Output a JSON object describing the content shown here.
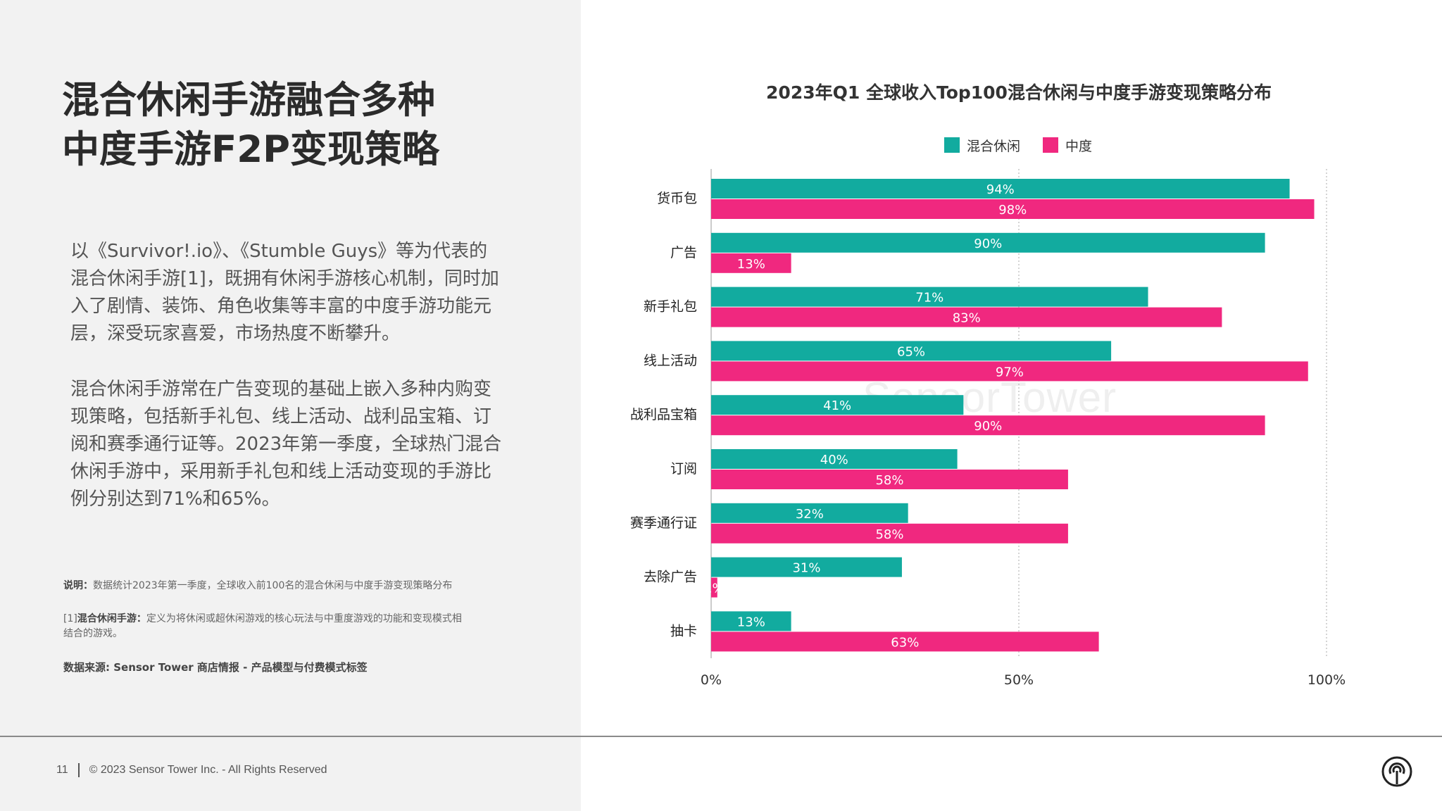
{
  "headline": [
    "混合休闲手游融合多种",
    "中度手游F2P变现策略"
  ],
  "paragraphs": [
    [
      "以《Survivor!.io》、《Stumble Guys》等为代表的",
      "混合休闲手游[1]，既拥有休闲手游核心机制，同时加",
      "入了剧情、装饰、角色收集等丰富的中度手游功能元",
      "层，深受玩家喜爱，市场热度不断攀升。"
    ],
    [
      "混合休闲手游常在广告变现的基础上嵌入多种内购变",
      "现策略，包括新手礼包、线上活动、战利品宝箱、订",
      "阅和赛季通行证等。2023年第一季度，全球热门混合",
      "休闲手游中，采用新手礼包和线上活动变现的手游比",
      "例分别达到71%和65%。"
    ]
  ],
  "notes": {
    "note1_label": "说明：",
    "note1_text": "数据统计2023年第一季度，全球收入前100名的混合休闲与中度手游变现策略分布",
    "note2_prefix": "[1]",
    "note2_label": "混合休闲手游：",
    "note2_text_line1": "定义为将休闲或超休闲游戏的核心玩法与中重度游戏的功能和变现模式相",
    "note2_text_line2": "结合的游戏。",
    "source": "数据来源: Sensor Tower 商店情报 - 产品模型与付费模式标签"
  },
  "footer": {
    "page": "11",
    "copyright": "© 2023 Sensor Tower Inc. - All Rights Reserved"
  },
  "watermark": "SensorTower",
  "colors": {
    "teal": "#12ab9f",
    "pink": "#f0287f",
    "panel": "#f2f2f2"
  },
  "chart_data": {
    "type": "bar",
    "orientation": "horizontal",
    "title": "2023年Q1 全球收入Top100混合休闲与中度手游变现策略分布",
    "categories": [
      "货币包",
      "广告",
      "新手礼包",
      "线上活动",
      "战利品宝箱",
      "订阅",
      "赛季通行证",
      "去除广告",
      "抽卡"
    ],
    "series": [
      {
        "name": "混合休闲",
        "color": "#12ab9f",
        "values": [
          94,
          90,
          71,
          65,
          41,
          40,
          32,
          31,
          13
        ]
      },
      {
        "name": "中度",
        "color": "#f0287f",
        "values": [
          98,
          13,
          83,
          97,
          90,
          58,
          58,
          1,
          63
        ]
      }
    ],
    "xlim": [
      0,
      100
    ],
    "xticks": [
      "0%",
      "50%",
      "100%"
    ],
    "value_suffix": "%",
    "legend": "top-center",
    "grid": "vertical dotted"
  }
}
